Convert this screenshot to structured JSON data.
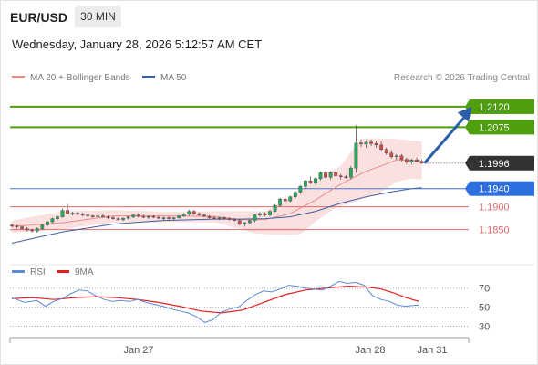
{
  "header": {
    "symbol": "EUR/USD",
    "timeframe": "30 MIN",
    "datetime": "Wednesday, January 28, 2026 5:12:57 AM CET"
  },
  "legend": {
    "ma20_label": "MA 20 + Bollinger Bands",
    "ma50_label": "MA 50",
    "credit": "Research © 2026 Trading Central",
    "rsi_label": "RSI",
    "rsi_ma_label": "9MA"
  },
  "colors": {
    "bull": "#27a95e",
    "bear": "#d64a4a",
    "ma20": "#ec8c8c",
    "ma50": "#3f5fa3",
    "band": "#fbe0e0",
    "resistance": "#4f9e0d",
    "pivot": "#4a79d4",
    "support": "#e06a6a",
    "rsi": "#5b8ad8",
    "rsi_ma": "#e02020",
    "arrow": "#2c5ea8",
    "last": "#333333"
  },
  "chart_data": [
    {
      "type": "candlestick",
      "title": "",
      "x_tick_labels": [
        "Jan 27",
        "Jan 28",
        "Jan 31"
      ],
      "ylim": [
        1.1803,
        1.2166
      ],
      "levels": [
        {
          "value": 1.212,
          "label": "1.2120",
          "kind": "resistance"
        },
        {
          "value": 1.2075,
          "label": "1.2075",
          "kind": "resistance"
        },
        {
          "value": 1.1996,
          "label": "1.1996",
          "kind": "last"
        },
        {
          "value": 1.194,
          "label": "1.1940",
          "kind": "pivot"
        },
        {
          "value": 1.19,
          "label": "1.1900",
          "kind": "support"
        },
        {
          "value": 1.185,
          "label": "1.1850",
          "kind": "support"
        }
      ],
      "candles": [
        [
          1.186,
          1.1863,
          1.1854,
          1.1858
        ],
        [
          1.1858,
          1.1861,
          1.1852,
          1.1856
        ],
        [
          1.1856,
          1.1858,
          1.1849,
          1.1852
        ],
        [
          1.1852,
          1.1855,
          1.1846,
          1.1849
        ],
        [
          1.1849,
          1.1852,
          1.1844,
          1.1847
        ],
        [
          1.1847,
          1.1855,
          1.1843,
          1.1852
        ],
        [
          1.1852,
          1.1862,
          1.185,
          1.186
        ],
        [
          1.186,
          1.1869,
          1.1857,
          1.1867
        ],
        [
          1.1867,
          1.1876,
          1.1864,
          1.1874
        ],
        [
          1.1874,
          1.188,
          1.187,
          1.1878
        ],
        [
          1.1878,
          1.1896,
          1.1876,
          1.1892
        ],
        [
          1.1892,
          1.1906,
          1.1883,
          1.1885
        ],
        [
          1.1885,
          1.1889,
          1.1881,
          1.1886
        ],
        [
          1.1886,
          1.1889,
          1.1881,
          1.1884
        ],
        [
          1.1884,
          1.1887,
          1.1879,
          1.1882
        ],
        [
          1.1882,
          1.1885,
          1.1877,
          1.188
        ],
        [
          1.188,
          1.1883,
          1.1876,
          1.1878
        ],
        [
          1.1878,
          1.1882,
          1.1874,
          1.188
        ],
        [
          1.188,
          1.1884,
          1.1876,
          1.1878
        ],
        [
          1.1878,
          1.1881,
          1.1873,
          1.1876
        ],
        [
          1.1876,
          1.1879,
          1.1872,
          1.1874
        ],
        [
          1.1874,
          1.1877,
          1.187,
          1.1872
        ],
        [
          1.1872,
          1.1876,
          1.1869,
          1.1875
        ],
        [
          1.1875,
          1.188,
          1.1872,
          1.1878
        ],
        [
          1.1878,
          1.1885,
          1.1875,
          1.1882
        ],
        [
          1.1882,
          1.1886,
          1.1877,
          1.1879
        ],
        [
          1.1879,
          1.1883,
          1.1875,
          1.1877
        ],
        [
          1.1877,
          1.1881,
          1.1873,
          1.1879
        ],
        [
          1.1879,
          1.1882,
          1.1875,
          1.1877
        ],
        [
          1.1877,
          1.188,
          1.1873,
          1.1875
        ],
        [
          1.1875,
          1.1878,
          1.1871,
          1.1876
        ],
        [
          1.1876,
          1.1879,
          1.1872,
          1.1874
        ],
        [
          1.1874,
          1.1877,
          1.187,
          1.1876
        ],
        [
          1.1876,
          1.1882,
          1.1874,
          1.188
        ],
        [
          1.188,
          1.1886,
          1.1878,
          1.1884
        ],
        [
          1.1884,
          1.1894,
          1.188,
          1.189
        ],
        [
          1.189,
          1.1893,
          1.1882,
          1.1885
        ],
        [
          1.1885,
          1.1888,
          1.188,
          1.1882
        ],
        [
          1.1882,
          1.1885,
          1.1877,
          1.1879
        ],
        [
          1.1879,
          1.1882,
          1.1874,
          1.1876
        ],
        [
          1.1876,
          1.1879,
          1.1872,
          1.1875
        ],
        [
          1.1875,
          1.1878,
          1.1871,
          1.1876
        ],
        [
          1.1876,
          1.1879,
          1.1872,
          1.1874
        ],
        [
          1.1874,
          1.1877,
          1.187,
          1.1872
        ],
        [
          1.1872,
          1.1875,
          1.1868,
          1.187
        ],
        [
          1.187,
          1.1873,
          1.1859,
          1.1862
        ],
        [
          1.1862,
          1.1867,
          1.1856,
          1.1865
        ],
        [
          1.1865,
          1.1872,
          1.1862,
          1.187
        ],
        [
          1.187,
          1.1884,
          1.1866,
          1.1882
        ],
        [
          1.1882,
          1.1888,
          1.1878,
          1.1885
        ],
        [
          1.1885,
          1.1888,
          1.1879,
          1.1882
        ],
        [
          1.1882,
          1.1893,
          1.188,
          1.189
        ],
        [
          1.189,
          1.1906,
          1.1888,
          1.1903
        ],
        [
          1.1903,
          1.192,
          1.19,
          1.1917
        ],
        [
          1.1917,
          1.1926,
          1.191,
          1.1913
        ],
        [
          1.1913,
          1.1924,
          1.191,
          1.1922
        ],
        [
          1.1922,
          1.1935,
          1.1918,
          1.1932
        ],
        [
          1.1932,
          1.1948,
          1.1928,
          1.1945
        ],
        [
          1.1945,
          1.196,
          1.194,
          1.1957
        ],
        [
          1.1957,
          1.1967,
          1.195,
          1.1952
        ],
        [
          1.1952,
          1.1965,
          1.1948,
          1.1962
        ],
        [
          1.1962,
          1.1978,
          1.1958,
          1.1975
        ],
        [
          1.1975,
          1.198,
          1.1962,
          1.1965
        ],
        [
          1.1965,
          1.1978,
          1.196,
          1.1975
        ],
        [
          1.1975,
          1.1978,
          1.1965,
          1.1968
        ],
        [
          1.1968,
          1.1972,
          1.196,
          1.1966
        ],
        [
          1.1966,
          1.197,
          1.1962,
          1.1965
        ],
        [
          1.1965,
          1.199,
          1.196,
          1.1985
        ],
        [
          1.1985,
          1.208,
          1.1975,
          1.204
        ],
        [
          1.204,
          1.2048,
          1.2032,
          1.2038
        ],
        [
          1.2038,
          1.2046,
          1.203,
          1.2042
        ],
        [
          1.2042,
          1.2048,
          1.2034,
          1.2039
        ],
        [
          1.2039,
          1.2045,
          1.203,
          1.2036
        ],
        [
          1.2036,
          1.2044,
          1.2022,
          1.2026
        ],
        [
          1.2026,
          1.203,
          1.2014,
          1.2018
        ],
        [
          1.2018,
          1.2024,
          1.2006,
          1.201
        ],
        [
          1.201,
          1.2016,
          1.2004,
          1.2012
        ],
        [
          1.2012,
          1.2016,
          1.2,
          1.2004
        ],
        [
          1.2004,
          1.2008,
          1.1994,
          1.1998
        ],
        [
          1.1998,
          1.2006,
          1.1994,
          1.2003
        ],
        [
          1.2003,
          1.2008,
          1.1998,
          1.2
        ],
        [
          1.2,
          1.2004,
          1.1994,
          1.1996
        ]
      ],
      "ma20": [
        [
          0,
          1.1857
        ],
        [
          10,
          1.1865
        ],
        [
          20,
          1.188
        ],
        [
          30,
          1.188
        ],
        [
          40,
          1.1879
        ],
        [
          45,
          1.1872
        ],
        [
          50,
          1.1872
        ],
        [
          55,
          1.1885
        ],
        [
          60,
          1.1915
        ],
        [
          65,
          1.195
        ],
        [
          70,
          1.1978
        ],
        [
          73,
          1.199
        ],
        [
          76,
          1.2003
        ],
        [
          79,
          1.2002
        ],
        [
          81,
          1.1999
        ]
      ],
      "bollinger_upper": [
        [
          0,
          1.187
        ],
        [
          10,
          1.189
        ],
        [
          20,
          1.1893
        ],
        [
          30,
          1.1889
        ],
        [
          40,
          1.189
        ],
        [
          45,
          1.189
        ],
        [
          50,
          1.189
        ],
        [
          55,
          1.192
        ],
        [
          60,
          1.196
        ],
        [
          65,
          1.199
        ],
        [
          69,
          1.205
        ],
        [
          73,
          1.205
        ],
        [
          76,
          1.2049
        ],
        [
          79,
          1.2045
        ],
        [
          81,
          1.2044
        ]
      ],
      "bollinger_lower": [
        [
          0,
          1.1843
        ],
        [
          10,
          1.1851
        ],
        [
          20,
          1.1866
        ],
        [
          30,
          1.1866
        ],
        [
          40,
          1.1866
        ],
        [
          45,
          1.1852
        ],
        [
          48,
          1.1842
        ],
        [
          52,
          1.1838
        ],
        [
          57,
          1.184
        ],
        [
          60,
          1.1868
        ],
        [
          64,
          1.1898
        ],
        [
          69,
          1.1916
        ],
        [
          73,
          1.1933
        ],
        [
          76,
          1.1955
        ],
        [
          79,
          1.1962
        ],
        [
          81,
          1.196
        ]
      ],
      "ma50": [
        [
          0,
          1.182
        ],
        [
          10,
          1.1845
        ],
        [
          20,
          1.1862
        ],
        [
          30,
          1.187
        ],
        [
          40,
          1.1873
        ],
        [
          45,
          1.1873
        ],
        [
          50,
          1.1874
        ],
        [
          55,
          1.1878
        ],
        [
          60,
          1.189
        ],
        [
          65,
          1.1908
        ],
        [
          70,
          1.1922
        ],
        [
          75,
          1.1933
        ],
        [
          79,
          1.194
        ],
        [
          81,
          1.1942
        ]
      ],
      "forecast_arrow": {
        "from": [
          81,
          1.1996
        ],
        "to": [
          90,
          1.212
        ]
      }
    },
    {
      "type": "line",
      "title": "",
      "yticks": [
        70,
        50,
        30
      ],
      "ylim": [
        20,
        85
      ],
      "series": [
        {
          "name": "RSI",
          "points": [
            [
              0,
              60
            ],
            [
              3,
              55
            ],
            [
              6,
              57
            ],
            [
              8,
              51
            ],
            [
              10,
              56
            ],
            [
              12,
              59
            ],
            [
              14,
              64
            ],
            [
              16,
              68
            ],
            [
              18,
              67
            ],
            [
              20,
              62
            ],
            [
              22,
              58
            ],
            [
              24,
              56
            ],
            [
              26,
              57
            ],
            [
              28,
              56
            ],
            [
              30,
              58
            ],
            [
              32,
              55
            ],
            [
              34,
              53
            ],
            [
              36,
              51
            ],
            [
              38,
              48
            ],
            [
              40,
              46
            ],
            [
              42,
              44
            ],
            [
              44,
              40
            ],
            [
              46,
              34
            ],
            [
              48,
              37
            ],
            [
              50,
              45
            ],
            [
              52,
              48
            ],
            [
              54,
              50
            ],
            [
              56,
              57
            ],
            [
              58,
              63
            ],
            [
              60,
              67
            ],
            [
              62,
              66
            ],
            [
              64,
              69
            ],
            [
              66,
              73
            ],
            [
              68,
              72
            ],
            [
              70,
              70
            ],
            [
              72,
              69
            ],
            [
              74,
              68
            ],
            [
              76,
              72
            ],
            [
              78,
              77
            ],
            [
              80,
              75
            ],
            [
              82,
              76
            ],
            [
              84,
              73
            ],
            [
              86,
              62
            ],
            [
              88,
              58
            ],
            [
              90,
              56
            ],
            [
              92,
              52
            ],
            [
              94,
              51
            ],
            [
              96,
              52
            ],
            [
              97,
              52
            ]
          ]
        },
        {
          "name": "9MA",
          "points": [
            [
              0,
              59
            ],
            [
              5,
              60
            ],
            [
              10,
              58
            ],
            [
              15,
              60
            ],
            [
              20,
              61
            ],
            [
              25,
              60
            ],
            [
              30,
              58
            ],
            [
              35,
              55
            ],
            [
              40,
              51
            ],
            [
              45,
              46
            ],
            [
              50,
              44
            ],
            [
              55,
              47
            ],
            [
              60,
              55
            ],
            [
              65,
              63
            ],
            [
              70,
              68
            ],
            [
              75,
              70
            ],
            [
              80,
              72
            ],
            [
              85,
              71
            ],
            [
              88,
              69
            ],
            [
              91,
              65
            ],
            [
              94,
              60
            ],
            [
              97,
              56
            ]
          ]
        }
      ]
    }
  ]
}
